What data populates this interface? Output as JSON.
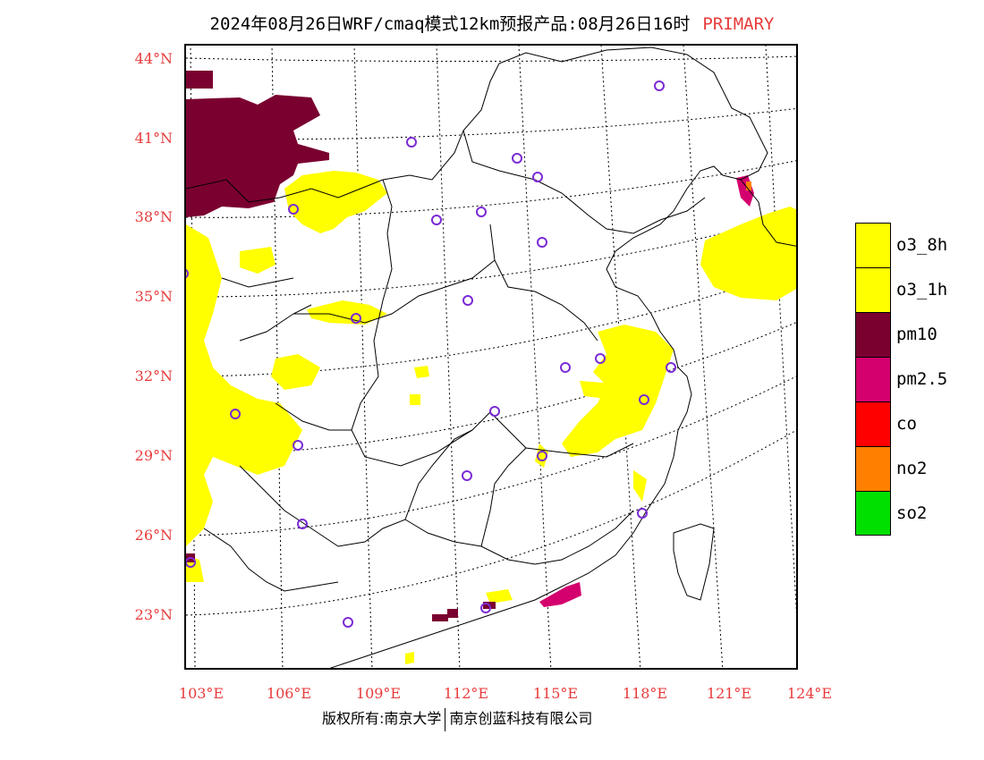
{
  "title": {
    "main": "2024年08月26日WRF/cmaq模式12km预报产品:08月26日16时",
    "tag": "PRIMARY"
  },
  "axes": {
    "lat_labels": [
      "44°N",
      "41°N",
      "38°N",
      "35°N",
      "32°N",
      "29°N",
      "26°N",
      "23°N"
    ],
    "lon_labels": [
      "103°E",
      "106°E",
      "109°E",
      "112°E",
      "115°E",
      "118°E",
      "121°E",
      "124°E"
    ]
  },
  "copyright": {
    "left": "版权所有:南京大学",
    "right": "南京创蓝科技有限公司"
  },
  "legend": [
    {
      "label": "o3_8h",
      "color": "#ffff00"
    },
    {
      "label": "o3_1h",
      "color": "#ffff00"
    },
    {
      "label": "pm10",
      "color": "#7a0030"
    },
    {
      "label": "pm2.5",
      "color": "#d4006e"
    },
    {
      "label": "co",
      "color": "#ff0000"
    },
    {
      "label": "no2",
      "color": "#ff8000"
    },
    {
      "label": "so2",
      "color": "#00e000"
    }
  ],
  "colors": {
    "label_red": "#e83b3b",
    "o3": "#ffff00",
    "pm10": "#7a0030",
    "pm25": "#d4006e",
    "no2": "#ff8000",
    "station_marker": "#7b2bd4"
  }
}
